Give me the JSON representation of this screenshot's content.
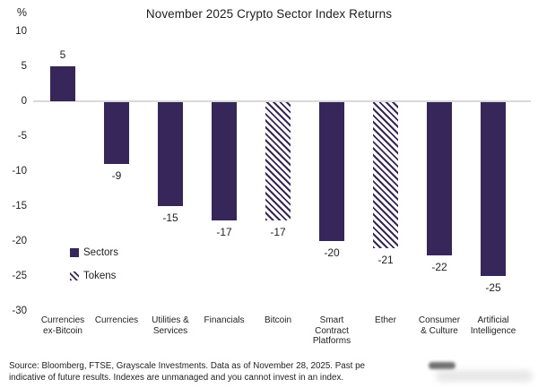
{
  "title": "November 2025 Crypto Sector Index Returns",
  "colors": {
    "bar_purple": "#372659",
    "axis_line_gray": "#d9d9d9",
    "text_dark": "#1f1f1f",
    "background": "#ffffff"
  },
  "y_axis": {
    "unit_label": "%",
    "ticks": [
      10,
      5,
      0,
      -5,
      -10,
      -15,
      -20,
      -25,
      -30
    ]
  },
  "legend": {
    "items": [
      {
        "label": "Sectors",
        "swatch": "solid-square-icon",
        "style": "solid"
      },
      {
        "label": "Tokens",
        "swatch": "hatched-square-icon",
        "style": "hatched"
      }
    ]
  },
  "chart_data": {
    "type": "bar",
    "title": "November 2025 Crypto Sector Index Returns",
    "xlabel": "",
    "ylabel": "%",
    "ylim": [
      -30,
      10
    ],
    "grid": "zero-baseline only",
    "legend_position": "inside lower-left",
    "categories": [
      "Currencies ex-Bitcoin",
      "Currencies",
      "Utilities & Services",
      "Financials",
      "Bitcoin",
      "Smart Contract Platforms",
      "Ether",
      "Consumer & Culture",
      "Artificial Intelligence"
    ],
    "category_lines": [
      [
        "Currencies",
        "ex-Bitcoin"
      ],
      [
        "Currencies"
      ],
      [
        "Utilities &",
        "Services"
      ],
      [
        "Financials"
      ],
      [
        "Bitcoin"
      ],
      [
        "Smart",
        "Contract",
        "Platforms"
      ],
      [
        "Ether"
      ],
      [
        "Consumer",
        "& Culture"
      ],
      [
        "Artificial",
        "Intelligence"
      ]
    ],
    "values": [
      5,
      -9,
      -15,
      -17,
      -17,
      -20,
      -21,
      -22,
      -25
    ],
    "bar_styles": [
      "solid",
      "solid",
      "solid",
      "solid",
      "hatched",
      "solid",
      "hatched",
      "solid",
      "solid"
    ],
    "series_note": "solid = Sectors, hatched = Tokens"
  },
  "footnote": {
    "line1": "Source: Bloomberg, FTSE, Grayscale Investments. Data as of November 28, 2025. Past pe",
    "line2": "indicative of future results. Indexes are unmanaged and you cannot invest in an index."
  }
}
